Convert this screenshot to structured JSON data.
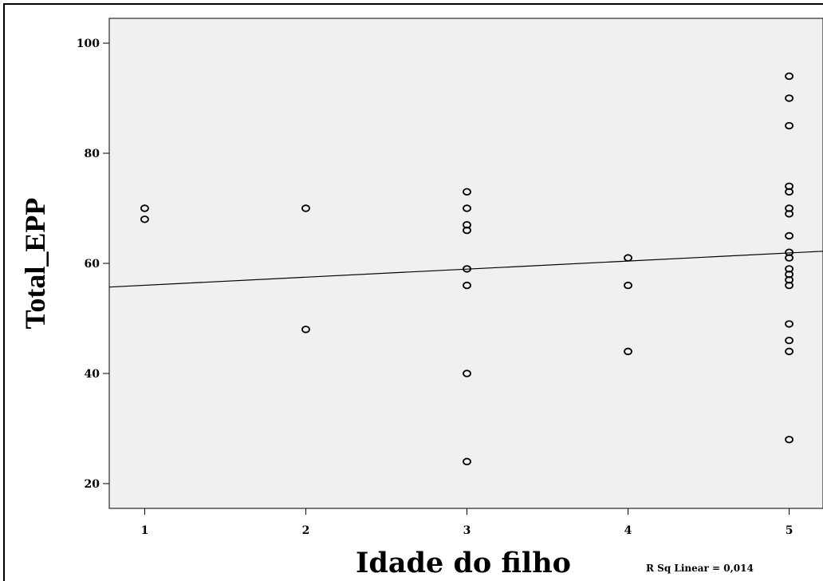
{
  "chart_data": {
    "type": "scatter",
    "xlabel": "Idade do filho",
    "ylabel": "Total_EPP",
    "annotation": "R Sq Linear = 0,014",
    "xlim": [
      0.78,
      5.21
    ],
    "ylim": [
      15.5,
      104.5
    ],
    "x_ticks": [
      "1",
      "2",
      "3",
      "4",
      "5"
    ],
    "y_ticks": [
      "20",
      "40",
      "60",
      "80",
      "100"
    ],
    "grid": false,
    "background": "#f0f0f0",
    "marker_color": "#000000",
    "series": [
      {
        "points": [
          [
            1,
            70
          ],
          [
            1,
            68
          ],
          [
            2,
            70
          ],
          [
            2,
            48
          ],
          [
            3,
            73
          ],
          [
            3,
            70
          ],
          [
            3,
            67
          ],
          [
            3,
            66
          ],
          [
            3,
            59
          ],
          [
            3,
            56
          ],
          [
            3,
            40
          ],
          [
            3,
            24
          ],
          [
            4,
            61
          ],
          [
            4,
            56
          ],
          [
            4,
            44
          ],
          [
            5,
            94
          ],
          [
            5,
            90
          ],
          [
            5,
            85
          ],
          [
            5,
            74
          ],
          [
            5,
            73
          ],
          [
            5,
            70
          ],
          [
            5,
            69
          ],
          [
            5,
            65
          ],
          [
            5,
            62
          ],
          [
            5,
            61
          ],
          [
            5,
            59
          ],
          [
            5,
            58
          ],
          [
            5,
            57
          ],
          [
            5,
            56
          ],
          [
            5,
            49
          ],
          [
            5,
            46
          ],
          [
            5,
            44
          ],
          [
            5,
            28
          ]
        ]
      }
    ],
    "fit_line": {
      "type": "linear",
      "x_start": 0.78,
      "y_start": 55.7,
      "x_end": 5.21,
      "y_end": 62.2
    }
  }
}
